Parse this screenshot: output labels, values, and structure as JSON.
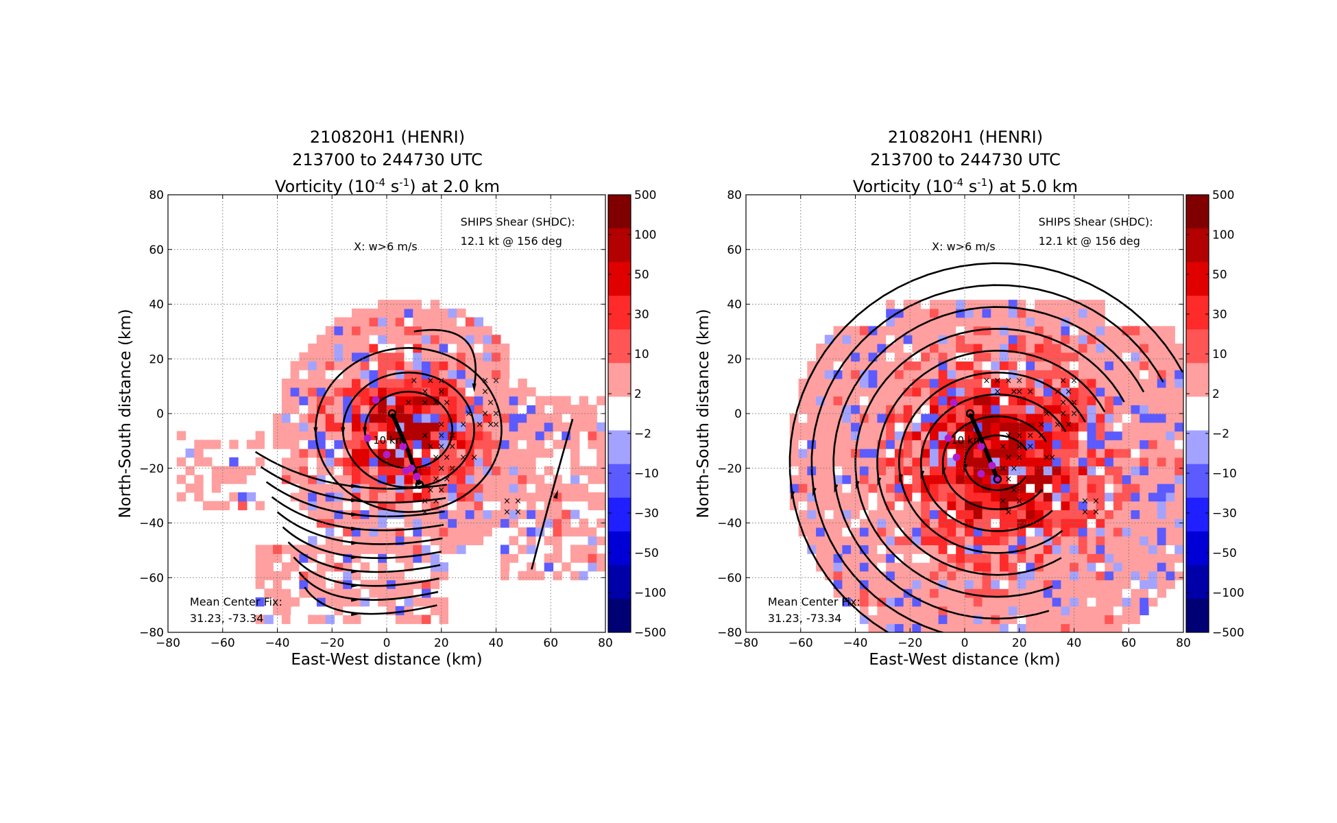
{
  "chart_data": [
    {
      "type": "heatmap",
      "title_lines": [
        "210820H1 (HENRI)",
        "213700 to 244730 UTC"
      ],
      "variable": "Vorticity",
      "units_base": "10",
      "units_exp1": "-4",
      "units_s": "s",
      "units_exp2": "-1",
      "level": "at 2.0 km",
      "xlabel": "East-West distance (km)",
      "ylabel": "North-South distance (km)",
      "xlim": [
        -80,
        80
      ],
      "ylim": [
        -80,
        80
      ],
      "xticks": [
        -80,
        -60,
        -40,
        -20,
        0,
        20,
        40,
        60,
        80
      ],
      "yticks": [
        -80,
        -60,
        -40,
        -20,
        0,
        20,
        40,
        60,
        80
      ],
      "grid": true,
      "annotations": {
        "updraft_key": "X: w>6 m/s",
        "shear_line1": "SHIPS Shear (SHDC):",
        "shear_line2": "12.1 kt @ 156 deg",
        "center_line1": "Mean Center Fix:",
        "center_line2": "31.23, -73.34",
        "tilt_label": "10 km"
      },
      "center_track": [
        [
          2,
          0
        ],
        [
          8,
          -14
        ],
        [
          12,
          -26
        ]
      ],
      "center_points": [
        [
          -4,
          5
        ],
        [
          -7,
          -9
        ],
        [
          0,
          -15
        ],
        [
          6,
          -12
        ],
        [
          9,
          -20
        ],
        [
          7,
          -21
        ],
        [
          11,
          -23
        ]
      ],
      "updrafts": [
        [
          10,
          12
        ],
        [
          16,
          12
        ],
        [
          20,
          12
        ],
        [
          14,
          8
        ],
        [
          20,
          8
        ],
        [
          8,
          4
        ],
        [
          14,
          4
        ],
        [
          18,
          4
        ],
        [
          22,
          4
        ],
        [
          36,
          12
        ],
        [
          40,
          12
        ],
        [
          36,
          8
        ],
        [
          38,
          4
        ],
        [
          36,
          0
        ],
        [
          40,
          0
        ],
        [
          30,
          0
        ],
        [
          34,
          -4
        ],
        [
          38,
          -4
        ],
        [
          40,
          -4
        ],
        [
          28,
          -4
        ],
        [
          20,
          -4
        ],
        [
          14,
          -8
        ],
        [
          20,
          -8
        ],
        [
          24,
          -8
        ],
        [
          16,
          -12
        ],
        [
          20,
          -12
        ],
        [
          24,
          -12
        ],
        [
          18,
          -16
        ],
        [
          22,
          -16
        ],
        [
          28,
          -16
        ],
        [
          32,
          -16
        ],
        [
          20,
          -20
        ],
        [
          24,
          -20
        ],
        [
          18,
          -24
        ],
        [
          22,
          -24
        ],
        [
          16,
          -28
        ],
        [
          20,
          -28
        ],
        [
          14,
          -32
        ],
        [
          18,
          -32
        ],
        [
          14,
          -36
        ],
        [
          44,
          -32
        ],
        [
          48,
          -32
        ],
        [
          44,
          -36
        ],
        [
          48,
          -36
        ]
      ],
      "vortex_center": [
        6,
        -8
      ],
      "vortex_shape": "closed"
    },
    {
      "type": "heatmap",
      "title_lines": [
        "210820H1 (HENRI)",
        "213700 to 244730 UTC"
      ],
      "variable": "Vorticity",
      "units_base": "10",
      "units_exp1": "-4",
      "units_s": "s",
      "units_exp2": "-1",
      "level": "at 5.0 km",
      "xlabel": "East-West distance (km)",
      "ylabel": "North-South distance (km)",
      "xlim": [
        -80,
        80
      ],
      "ylim": [
        -80,
        80
      ],
      "xticks": [
        -80,
        -60,
        -40,
        -20,
        0,
        20,
        40,
        60,
        80
      ],
      "yticks": [
        -80,
        -60,
        -40,
        -20,
        0,
        20,
        40,
        60,
        80
      ],
      "grid": true,
      "annotations": {
        "updraft_key": "X: w>6 m/s",
        "shear_line1": "SHIPS Shear (SHDC):",
        "shear_line2": "12.1 kt @ 156 deg",
        "center_line1": "Mean Center Fix:",
        "center_line2": "31.23, -73.34",
        "tilt_label": "10 km"
      },
      "center_track": [
        [
          2,
          0
        ],
        [
          8,
          -14
        ],
        [
          12,
          -24
        ]
      ],
      "center_points": [
        [
          -4,
          4
        ],
        [
          -6,
          -9
        ],
        [
          -3,
          -16
        ],
        [
          6,
          -12
        ],
        [
          10,
          -19
        ],
        [
          6,
          -22
        ],
        [
          12,
          -24
        ]
      ],
      "updrafts": [
        [
          8,
          12
        ],
        [
          12,
          12
        ],
        [
          16,
          12
        ],
        [
          20,
          12
        ],
        [
          12,
          8
        ],
        [
          18,
          8
        ],
        [
          20,
          8
        ],
        [
          24,
          8
        ],
        [
          36,
          12
        ],
        [
          40,
          12
        ],
        [
          34,
          8
        ],
        [
          38,
          8
        ],
        [
          36,
          4
        ],
        [
          40,
          4
        ],
        [
          30,
          0
        ],
        [
          36,
          0
        ],
        [
          40,
          0
        ],
        [
          28,
          -4
        ],
        [
          34,
          -4
        ],
        [
          38,
          -4
        ],
        [
          16,
          -8
        ],
        [
          20,
          -8
        ],
        [
          24,
          -8
        ],
        [
          28,
          -8
        ],
        [
          14,
          -12
        ],
        [
          20,
          -12
        ],
        [
          24,
          -12
        ],
        [
          30,
          -16
        ],
        [
          32,
          -16
        ],
        [
          16,
          -16
        ],
        [
          20,
          -16
        ],
        [
          14,
          -20
        ],
        [
          18,
          -20
        ],
        [
          16,
          -24
        ],
        [
          18,
          -28
        ],
        [
          14,
          -32
        ],
        [
          20,
          -32
        ],
        [
          16,
          -36
        ],
        [
          44,
          -32
        ],
        [
          48,
          -32
        ],
        [
          44,
          -36
        ],
        [
          48,
          -36
        ]
      ],
      "vortex_center": [
        12,
        -18
      ],
      "vortex_shape": "spiral"
    }
  ],
  "colorbar": {
    "levels": [
      "500",
      "100",
      "50",
      "30",
      "10",
      "2",
      "−2",
      "−10",
      "−30",
      "−50",
      "−100",
      "−500"
    ],
    "colors": [
      "#800000",
      "#b30000",
      "#e00000",
      "#ff2a2a",
      "#ff5555",
      "#ff9f9f",
      "#ffffff",
      "#a3a3ff",
      "#5b5bff",
      "#1f1fff",
      "#0000d6",
      "#0000a8",
      "#000075"
    ]
  }
}
